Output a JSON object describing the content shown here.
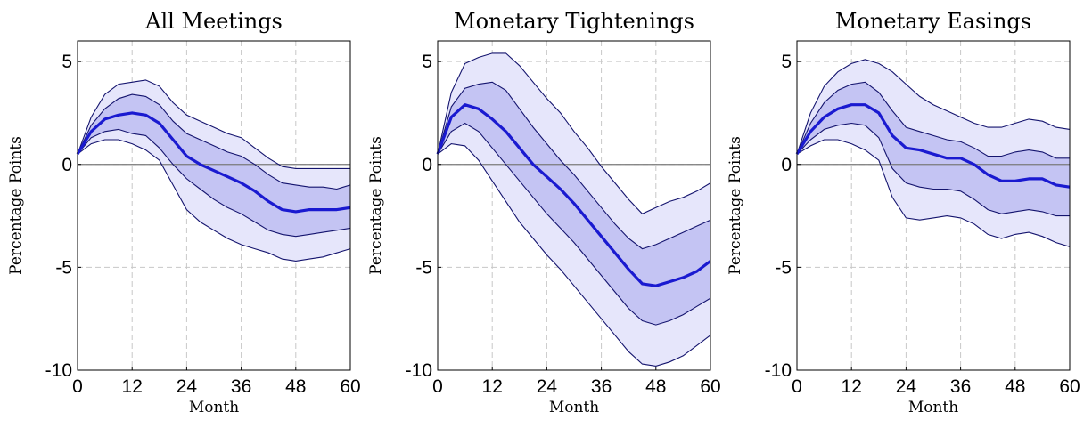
{
  "chart_data": [
    {
      "type": "area",
      "title": "All Meetings",
      "xlabel": "Month",
      "ylabel": "Percentage Points",
      "xlim": [
        0,
        60
      ],
      "ylim": [
        -10,
        6
      ],
      "xticks": [
        0,
        12,
        24,
        36,
        48,
        60
      ],
      "yticks": [
        5,
        0,
        -5,
        -10
      ],
      "grid": true,
      "x": [
        0,
        3,
        6,
        9,
        12,
        15,
        18,
        21,
        24,
        27,
        30,
        33,
        36,
        39,
        42,
        45,
        48,
        51,
        54,
        57,
        60
      ],
      "series": [
        {
          "role": "outer_upper",
          "values": [
            0.5,
            2.3,
            3.4,
            3.9,
            4.0,
            4.1,
            3.8,
            3.0,
            2.4,
            2.1,
            1.8,
            1.5,
            1.3,
            0.8,
            0.3,
            -0.1,
            -0.2,
            -0.2,
            -0.2,
            -0.2,
            -0.2
          ]
        },
        {
          "role": "inner_upper",
          "values": [
            0.5,
            1.9,
            2.7,
            3.2,
            3.4,
            3.3,
            2.9,
            2.1,
            1.5,
            1.2,
            0.9,
            0.6,
            0.4,
            0.0,
            -0.5,
            -0.9,
            -1.0,
            -1.1,
            -1.1,
            -1.2,
            -1.0
          ]
        },
        {
          "role": "median",
          "values": [
            0.5,
            1.6,
            2.2,
            2.4,
            2.5,
            2.4,
            2.0,
            1.2,
            0.4,
            0.0,
            -0.3,
            -0.6,
            -0.9,
            -1.3,
            -1.8,
            -2.2,
            -2.3,
            -2.2,
            -2.2,
            -2.2,
            -2.1
          ]
        },
        {
          "role": "inner_lower",
          "values": [
            0.5,
            1.3,
            1.6,
            1.7,
            1.5,
            1.4,
            0.8,
            0.0,
            -0.7,
            -1.2,
            -1.7,
            -2.1,
            -2.4,
            -2.8,
            -3.2,
            -3.4,
            -3.5,
            -3.4,
            -3.3,
            -3.2,
            -3.1
          ]
        },
        {
          "role": "outer_lower",
          "values": [
            0.5,
            1.0,
            1.2,
            1.2,
            1.0,
            0.7,
            0.2,
            -1.0,
            -2.2,
            -2.8,
            -3.2,
            -3.6,
            -3.9,
            -4.1,
            -4.3,
            -4.6,
            -4.7,
            -4.6,
            -4.5,
            -4.3,
            -4.1
          ]
        }
      ]
    },
    {
      "type": "area",
      "title": "Monetary Tightenings",
      "xlabel": "Month",
      "ylabel": "Percentage Points",
      "xlim": [
        0,
        60
      ],
      "ylim": [
        -10,
        6
      ],
      "xticks": [
        0,
        12,
        24,
        36,
        48,
        60
      ],
      "yticks": [
        5,
        0,
        -5,
        -10
      ],
      "grid": true,
      "x": [
        0,
        3,
        6,
        9,
        12,
        15,
        18,
        21,
        24,
        27,
        30,
        33,
        36,
        39,
        42,
        45,
        48,
        51,
        54,
        57,
        60
      ],
      "series": [
        {
          "role": "outer_upper",
          "values": [
            0.5,
            3.5,
            4.9,
            5.2,
            5.4,
            5.4,
            4.8,
            4.0,
            3.2,
            2.5,
            1.6,
            0.8,
            -0.1,
            -0.9,
            -1.7,
            -2.4,
            -2.1,
            -1.8,
            -1.6,
            -1.3,
            -0.9
          ]
        },
        {
          "role": "inner_upper",
          "values": [
            0.5,
            2.8,
            3.7,
            3.9,
            4.0,
            3.6,
            2.7,
            1.8,
            1.0,
            0.2,
            -0.5,
            -1.3,
            -2.1,
            -2.9,
            -3.6,
            -4.1,
            -3.9,
            -3.6,
            -3.3,
            -3.0,
            -2.7
          ]
        },
        {
          "role": "median",
          "values": [
            0.5,
            2.3,
            2.9,
            2.7,
            2.2,
            1.6,
            0.8,
            0.0,
            -0.6,
            -1.2,
            -1.9,
            -2.7,
            -3.5,
            -4.3,
            -5.1,
            -5.8,
            -5.9,
            -5.7,
            -5.5,
            -5.2,
            -4.7
          ]
        },
        {
          "role": "inner_lower",
          "values": [
            0.5,
            1.6,
            2.0,
            1.6,
            0.8,
            0.0,
            -0.8,
            -1.6,
            -2.4,
            -3.1,
            -3.8,
            -4.6,
            -5.4,
            -6.2,
            -7.0,
            -7.6,
            -7.8,
            -7.6,
            -7.3,
            -6.9,
            -6.5
          ]
        },
        {
          "role": "outer_lower",
          "values": [
            0.5,
            1.0,
            0.9,
            0.2,
            -0.8,
            -1.8,
            -2.8,
            -3.6,
            -4.4,
            -5.1,
            -5.9,
            -6.7,
            -7.5,
            -8.3,
            -9.1,
            -9.7,
            -9.8,
            -9.6,
            -9.3,
            -8.8,
            -8.3
          ]
        }
      ]
    },
    {
      "type": "area",
      "title": "Monetary Easings",
      "xlabel": "Month",
      "ylabel": "Percentage Points",
      "xlim": [
        0,
        60
      ],
      "ylim": [
        -10,
        6
      ],
      "xticks": [
        0,
        12,
        24,
        36,
        48,
        60
      ],
      "yticks": [
        5,
        0,
        -5,
        -10
      ],
      "grid": true,
      "x": [
        0,
        3,
        6,
        9,
        12,
        15,
        18,
        21,
        24,
        27,
        30,
        33,
        36,
        39,
        42,
        45,
        48,
        51,
        54,
        57,
        60
      ],
      "series": [
        {
          "role": "outer_upper",
          "values": [
            0.5,
            2.5,
            3.8,
            4.5,
            4.9,
            5.1,
            4.9,
            4.5,
            3.9,
            3.3,
            2.9,
            2.6,
            2.3,
            2.0,
            1.8,
            1.8,
            2.0,
            2.2,
            2.1,
            1.8,
            1.7
          ]
        },
        {
          "role": "inner_upper",
          "values": [
            0.5,
            2.0,
            3.0,
            3.6,
            3.9,
            4.0,
            3.5,
            2.6,
            1.8,
            1.6,
            1.4,
            1.2,
            1.1,
            0.8,
            0.4,
            0.4,
            0.6,
            0.7,
            0.6,
            0.3,
            0.3
          ]
        },
        {
          "role": "median",
          "values": [
            0.5,
            1.6,
            2.3,
            2.7,
            2.9,
            2.9,
            2.5,
            1.4,
            0.8,
            0.7,
            0.5,
            0.3,
            0.3,
            0.0,
            -0.5,
            -0.8,
            -0.8,
            -0.7,
            -0.7,
            -1.0,
            -1.1
          ]
        },
        {
          "role": "inner_lower",
          "values": [
            0.5,
            1.2,
            1.7,
            1.9,
            2.0,
            1.9,
            1.3,
            -0.2,
            -0.9,
            -1.1,
            -1.2,
            -1.2,
            -1.3,
            -1.7,
            -2.2,
            -2.4,
            -2.3,
            -2.2,
            -2.3,
            -2.5,
            -2.5
          ]
        },
        {
          "role": "outer_lower",
          "values": [
            0.5,
            0.9,
            1.2,
            1.2,
            1.0,
            0.7,
            0.2,
            -1.6,
            -2.6,
            -2.7,
            -2.6,
            -2.5,
            -2.6,
            -2.9,
            -3.4,
            -3.6,
            -3.4,
            -3.3,
            -3.5,
            -3.8,
            -4.0
          ]
        }
      ]
    }
  ],
  "style": {
    "outer_band": "#e6e6fb",
    "inner_band": "#c4c4f3",
    "band_edge": "#14146e",
    "median": "#1a1ad0",
    "zero_line": "#7a7a7a",
    "grid": "#c8c8c8",
    "axis": "#000000"
  }
}
